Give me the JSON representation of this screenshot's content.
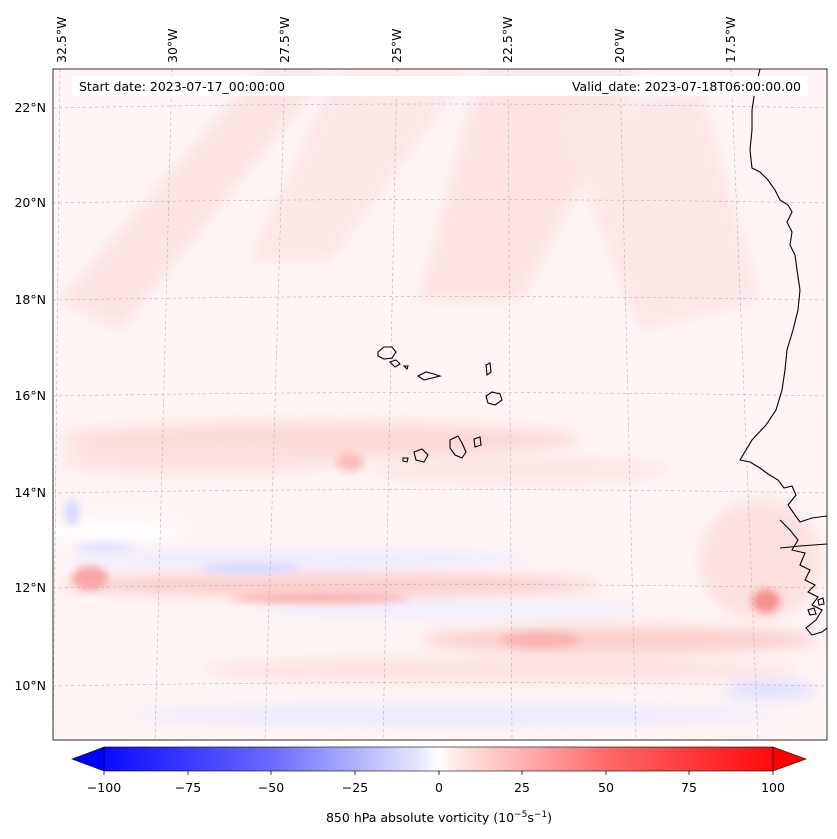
{
  "header": {
    "start_date": "Start date: 2023-07-17_00:00:00",
    "valid_date": "Valid_date: 2023-07-18T06:00:00.00"
  },
  "map": {
    "longitude_labels": [
      "32.5°W",
      "30°W",
      "27.5°W",
      "25°W",
      "22.5°W",
      "20°W",
      "17.5°W"
    ],
    "latitude_labels": [
      "22°N",
      "20°N",
      "18°N",
      "16°N",
      "14°N",
      "12°N",
      "10°N"
    ],
    "gridlines": true,
    "field": "850 hPa absolute vorticity"
  },
  "colorbar": {
    "title_main": "850 hPa absolute vorticity (10",
    "title_exp1": "−5",
    "title_mid": "s",
    "title_exp2": "−1",
    "title_end": ")",
    "min": -100,
    "max": 100,
    "extend": "both",
    "ticks": [
      "−100",
      "−75",
      "−50",
      "−25",
      "0",
      "25",
      "50",
      "75",
      "100"
    ],
    "colors": {
      "negative": "#0000ff",
      "zero": "#ffffff",
      "positive": "#ff0000"
    }
  }
}
